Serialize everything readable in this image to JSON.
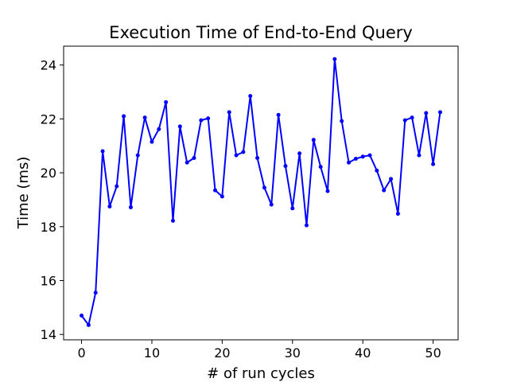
{
  "chart_data": {
    "type": "line",
    "title": "Execution Time of End-to-End Query",
    "xlabel": "# of run cycles",
    "ylabel": "Time (ms)",
    "xlim": [
      -2.55,
      53.55
    ],
    "ylim": [
      13.8,
      24.7
    ],
    "xticks": [
      0,
      10,
      20,
      30,
      40,
      50
    ],
    "yticks": [
      14,
      16,
      18,
      20,
      22,
      24
    ],
    "grid": false,
    "series": [
      {
        "color": "#0000ff",
        "marker": "circle",
        "x": [
          0,
          1,
          2,
          3,
          4,
          5,
          6,
          7,
          8,
          9,
          10,
          11,
          12,
          13,
          14,
          15,
          16,
          17,
          18,
          19,
          20,
          21,
          22,
          23,
          24,
          25,
          26,
          27,
          28,
          29,
          30,
          31,
          32,
          33,
          34,
          35,
          36,
          37,
          38,
          39,
          40,
          41,
          42,
          43,
          44,
          45,
          46,
          47,
          48,
          49,
          50,
          51
        ],
        "y": [
          14.7,
          14.35,
          15.55,
          20.8,
          18.75,
          19.5,
          22.1,
          18.72,
          20.65,
          22.05,
          21.15,
          21.62,
          22.62,
          18.22,
          21.72,
          20.38,
          20.55,
          21.95,
          22.02,
          19.35,
          19.12,
          22.25,
          20.65,
          20.77,
          22.85,
          20.55,
          19.45,
          18.82,
          22.15,
          20.25,
          18.68,
          20.72,
          18.05,
          21.22,
          20.22,
          19.32,
          24.22,
          21.92,
          20.38,
          20.52,
          20.6,
          20.65,
          20.08,
          19.35,
          19.77,
          18.48,
          21.95,
          22.05,
          20.65,
          22.22,
          20.32,
          22.25
        ]
      }
    ]
  }
}
